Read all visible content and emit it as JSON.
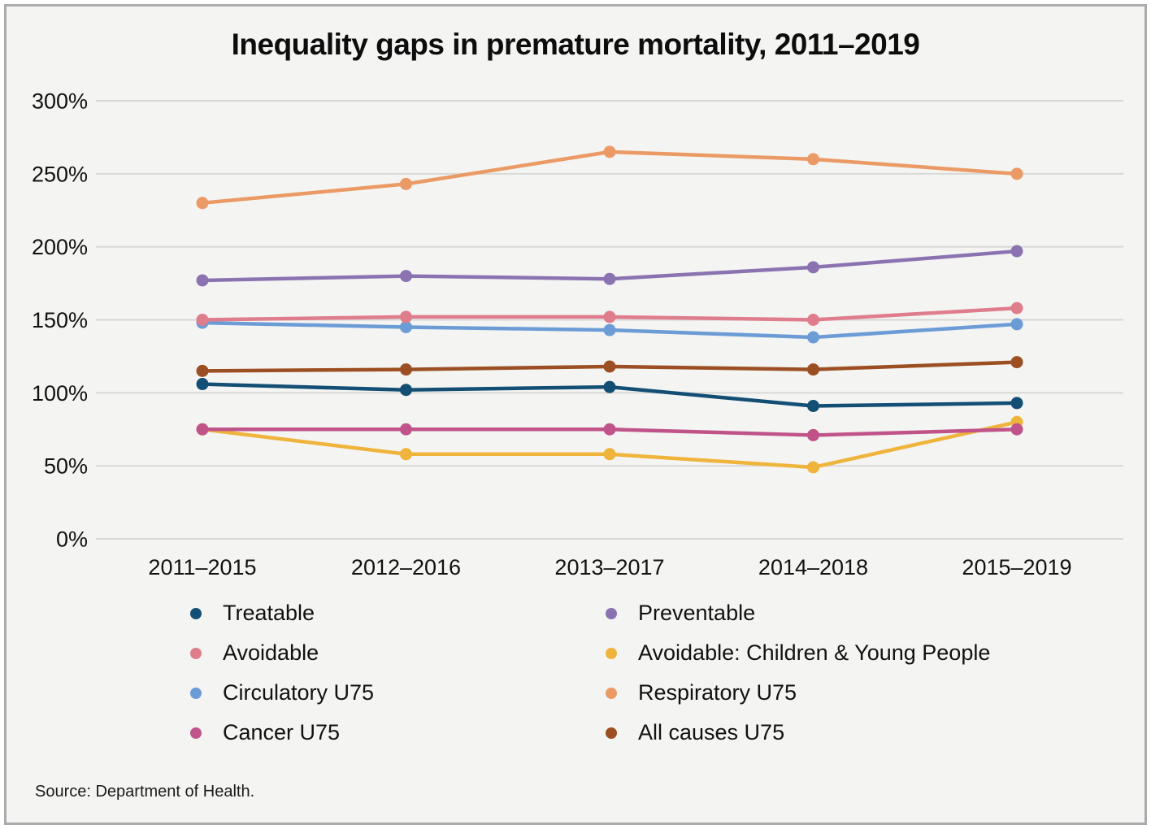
{
  "title": "Inequality gaps in premature mortality, 2011–2019",
  "source": "Source: Department of Health.",
  "chart_data": {
    "type": "line",
    "title": "Inequality gaps in premature mortality, 2011–2019",
    "categories": [
      "2011–2015",
      "2012–2016",
      "2013–2017",
      "2014–2018",
      "2015–2019"
    ],
    "xlabel": "",
    "ylabel": "",
    "ylim": [
      0,
      300
    ],
    "grid": true,
    "legend_position": "bottom-two-columns",
    "y_axis_ticks": [
      {
        "label": "0%",
        "value": 0
      },
      {
        "label": "50%",
        "value": 50
      },
      {
        "label": "100%",
        "value": 100
      },
      {
        "label": "150%",
        "value": 150
      },
      {
        "label": "200%",
        "value": 200
      },
      {
        "label": "250%",
        "value": 250
      },
      {
        "label": "300%",
        "value": 300
      }
    ],
    "series": [
      {
        "name": "Treatable",
        "color": "#134E75",
        "values": [
          106,
          102,
          104,
          91,
          93
        ]
      },
      {
        "name": "Preventable",
        "color": "#8B73B2",
        "values": [
          177,
          180,
          178,
          186,
          197
        ]
      },
      {
        "name": "Avoidable",
        "color": "#E07D8C",
        "values": [
          150,
          152,
          152,
          150,
          158
        ]
      },
      {
        "name": "Avoidable: Children & Young People",
        "color": "#EFB43C",
        "values": [
          75,
          58,
          58,
          49,
          80
        ]
      },
      {
        "name": "Circulatory U75",
        "color": "#6C9CD6",
        "values": [
          148,
          145,
          143,
          138,
          147
        ]
      },
      {
        "name": "Respiratory U75",
        "color": "#EB9A66",
        "values": [
          230,
          243,
          265,
          260,
          250
        ]
      },
      {
        "name": "Cancer U75",
        "color": "#C05389",
        "values": [
          75,
          75,
          75,
          71,
          75
        ]
      },
      {
        "name": "All causes U75",
        "color": "#9B4F22",
        "values": [
          115,
          116,
          118,
          116,
          121
        ]
      }
    ]
  },
  "legend": {
    "columns": [
      [
        "Treatable",
        "Avoidable",
        "Circulatory U75",
        "Cancer U75"
      ],
      [
        "Preventable",
        "Avoidable: Children & Young People",
        "Respiratory U75",
        "All causes U75"
      ]
    ]
  }
}
